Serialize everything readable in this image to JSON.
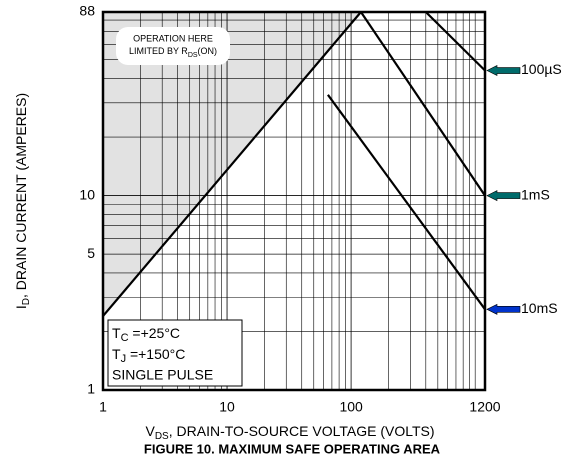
{
  "chart_data": {
    "type": "line",
    "title": "FIGURE 10. MAXIMUM SAFE OPERATING AREA",
    "x_label": {
      "main": "V",
      "sub": "DS",
      "rest": ", DRAIN-TO-SOURCE VOLTAGE (VOLTS)"
    },
    "y_label": {
      "main": "I",
      "sub": "D",
      "rest": ", DRAIN CURRENT (AMPERES)"
    },
    "xscale": "log",
    "yscale": "log",
    "xlim": [
      1,
      1200
    ],
    "ylim": [
      1,
      88
    ],
    "xticks": [
      1,
      10,
      100,
      1200
    ],
    "yticks": [
      1,
      5,
      10,
      88
    ],
    "grid": true,
    "limit_region": {
      "text_line1": "OPERATION HERE",
      "text_line2": "LIMITED BY R",
      "text_sub": "DS",
      "text_end": "(ON)",
      "color": "#e2e2e2",
      "x": [
        1,
        120
      ],
      "y": [
        2.4,
        88
      ]
    },
    "series": [
      {
        "name": "100µS",
        "color": "#006b6b",
        "x": [
          400,
          1200
        ],
        "y": [
          88,
          44
        ]
      },
      {
        "name": "1mS",
        "color": "#006b6b",
        "x": [
          120,
          1200
        ],
        "y": [
          88,
          10
        ]
      },
      {
        "name": "10mS",
        "color": "#0033cc",
        "x": [
          65,
          1200
        ],
        "y": [
          33,
          2.6
        ]
      }
    ],
    "conditions": {
      "tc_main": "T",
      "tc_sub": "C",
      "tc_rest": " =+25°C",
      "tj_main": "T",
      "tj_sub": "J",
      "tj_rest": " =+150°C",
      "pulse": "SINGLE PULSE"
    }
  }
}
